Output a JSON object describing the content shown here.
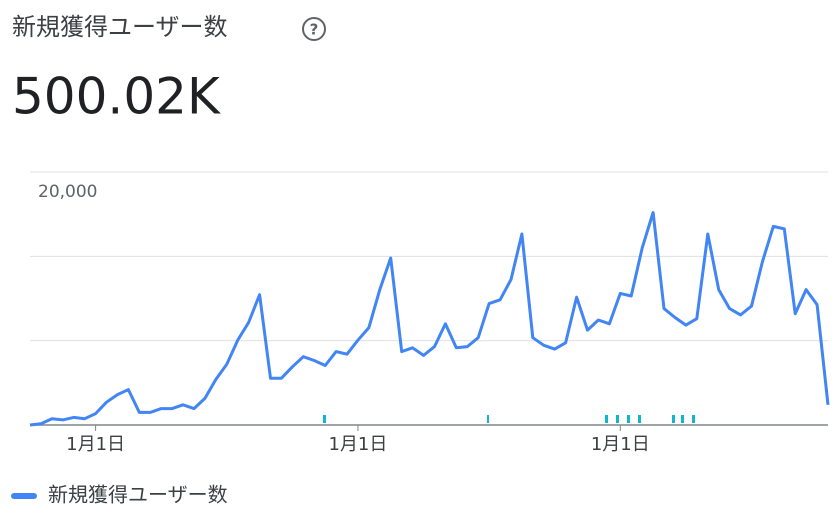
{
  "chart_data": {
    "type": "line",
    "title": "新規獲得ユーザー数",
    "metric": "500.02K",
    "categories": [
      null,
      null,
      null,
      null,
      null,
      null,
      "1月1日",
      null,
      null,
      null,
      null,
      null,
      null,
      null,
      null,
      null,
      null,
      null,
      null,
      null,
      null,
      null,
      null,
      null,
      null,
      null,
      null,
      null,
      null,
      null,
      "1月1日",
      null,
      null,
      null,
      null,
      null,
      null,
      null,
      null,
      null,
      null,
      null,
      null,
      null,
      null,
      null,
      null,
      null,
      null,
      null,
      null,
      null,
      null,
      null,
      "1月1日",
      null,
      null,
      null,
      null,
      null,
      null,
      null,
      null,
      null,
      null,
      null,
      null,
      null,
      null,
      null,
      null,
      null,
      null,
      null
    ],
    "series": [
      {
        "name": "新規獲得ユーザー数",
        "color": "#4285f4",
        "values": [
          0,
          100,
          500,
          400,
          600,
          500,
          900,
          1800,
          2400,
          2800,
          1000,
          1000,
          1300,
          1300,
          1600,
          1300,
          2100,
          3600,
          4800,
          6700,
          8100,
          10300,
          3700,
          3700,
          4600,
          5400,
          5100,
          4700,
          5800,
          5600,
          6700,
          7700,
          10700,
          13200,
          5800,
          6100,
          5500,
          6200,
          8000,
          6100,
          6200,
          6900,
          9600,
          9900,
          11500,
          15100,
          6900,
          6300,
          6000,
          6500,
          10100,
          7500,
          8300,
          8000,
          10400,
          10200,
          14000,
          16800,
          9200,
          8500,
          7900,
          8400,
          15100,
          10700,
          9200,
          8700,
          9400,
          12900,
          15700,
          15500,
          8800,
          10700,
          9500,
          1600
        ]
      }
    ],
    "ylim": [
      0,
      20000
    ],
    "yticks": [
      {
        "value": 0,
        "label": null
      },
      {
        "value": 6666.67,
        "label": null
      },
      {
        "value": 13333.33,
        "label": null
      },
      {
        "value": 20000,
        "label": "20,000"
      }
    ],
    "grid": true
  }
}
